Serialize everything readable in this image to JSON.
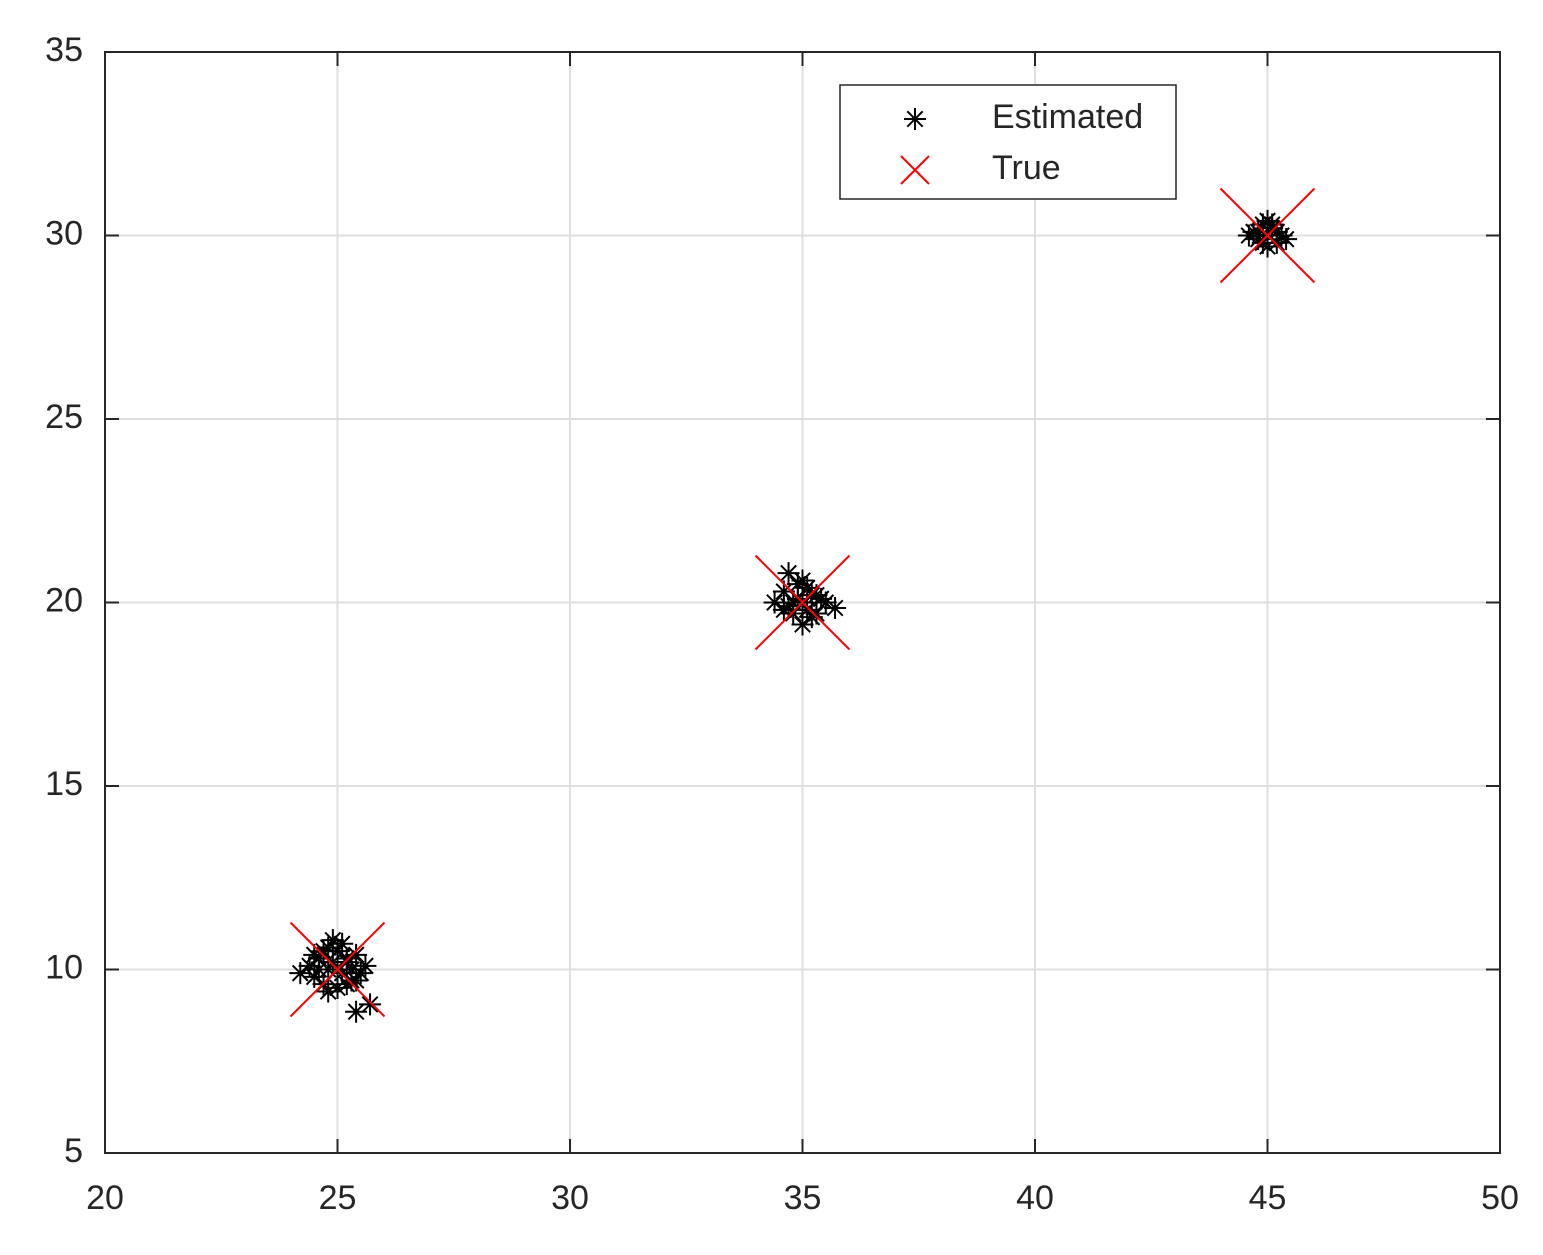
{
  "chart_data": {
    "type": "scatter",
    "xlim": [
      20,
      50
    ],
    "ylim": [
      5,
      35
    ],
    "xticks": [
      20,
      25,
      30,
      35,
      40,
      45,
      50
    ],
    "yticks": [
      5,
      10,
      15,
      20,
      25,
      30,
      35
    ],
    "grid": true,
    "legend": "top-right",
    "series": [
      {
        "name": "Estimated",
        "color": "#000000",
        "marker": "asterisk",
        "x": [
          24.2,
          24.4,
          24.5,
          24.6,
          24.7,
          24.8,
          24.9,
          25.0,
          25.1,
          25.2,
          25.3,
          25.4,
          25.5,
          25.6,
          24.6,
          24.8,
          25.0,
          25.2,
          25.4,
          24.9,
          25.1,
          24.7,
          25.3,
          25.4,
          25.7,
          24.5,
          25.0,
          24.8,
          25.2,
          34.4,
          34.6,
          34.7,
          34.8,
          34.9,
          35.0,
          35.1,
          35.2,
          35.3,
          35.5,
          35.7,
          34.7,
          34.9,
          35.1,
          35.3,
          34.6,
          35.0,
          35.2,
          34.8,
          35.4,
          35.0,
          44.6,
          44.7,
          44.8,
          44.9,
          45.0,
          45.1,
          45.2,
          45.3,
          45.4,
          44.8,
          45.0,
          45.2,
          44.9,
          45.1,
          45.0
        ],
        "values": [
          9.9,
          10.1,
          9.8,
          10.3,
          9.6,
          10.6,
          10.8,
          10.5,
          10.7,
          10.2,
          9.7,
          8.85,
          9.9,
          10.1,
          10.0,
          9.4,
          9.5,
          9.6,
          10.4,
          10.2,
          9.9,
          10.5,
          10.0,
          9.7,
          9.05,
          10.4,
          10.0,
          10.0,
          10.3,
          20.0,
          20.3,
          20.8,
          19.7,
          20.5,
          19.4,
          20.4,
          19.6,
          20.2,
          20.0,
          19.85,
          19.9,
          20.1,
          19.8,
          19.7,
          19.8,
          20.0,
          20.2,
          20.0,
          20.1,
          20.6,
          30.0,
          30.1,
          29.9,
          30.3,
          29.7,
          30.2,
          29.8,
          30.0,
          29.9,
          30.1,
          30.0,
          30.1,
          29.8,
          30.3,
          30.4
        ]
      },
      {
        "name": "True",
        "color": "#ff0000",
        "marker": "x",
        "x": [
          25,
          35,
          45
        ],
        "values": [
          10,
          20,
          30
        ]
      }
    ]
  }
}
